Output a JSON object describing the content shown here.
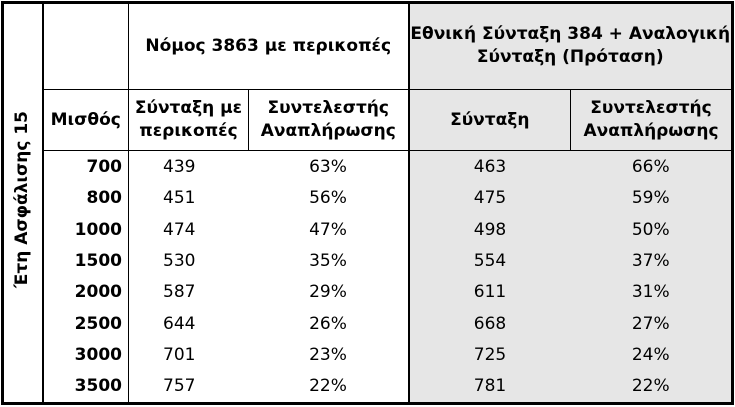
{
  "side_label": "Έτη Ασφάλισης 15",
  "table": {
    "groups": [
      "Νόμος 3863 με περικοπές",
      "Εθνική Σύνταξη 384 + Αναλογική Σύνταξη (Πρόταση)"
    ],
    "headers": [
      "Μισθός",
      "Σύνταξη με περικοπές",
      "Συντελεστής Αναπλήρωσης",
      "Σύνταξη",
      "Συντελεστής Αναπλήρωσης"
    ],
    "rows": [
      [
        700,
        439,
        "63%",
        463,
        "66%"
      ],
      [
        800,
        451,
        "56%",
        475,
        "59%"
      ],
      [
        1000,
        474,
        "47%",
        498,
        "50%"
      ],
      [
        1500,
        530,
        "35%",
        554,
        "37%"
      ],
      [
        2000,
        587,
        "29%",
        611,
        "31%"
      ],
      [
        2500,
        644,
        "26%",
        668,
        "27%"
      ],
      [
        3000,
        701,
        "23%",
        725,
        "24%"
      ],
      [
        3500,
        757,
        "22%",
        781,
        "22%"
      ]
    ]
  }
}
